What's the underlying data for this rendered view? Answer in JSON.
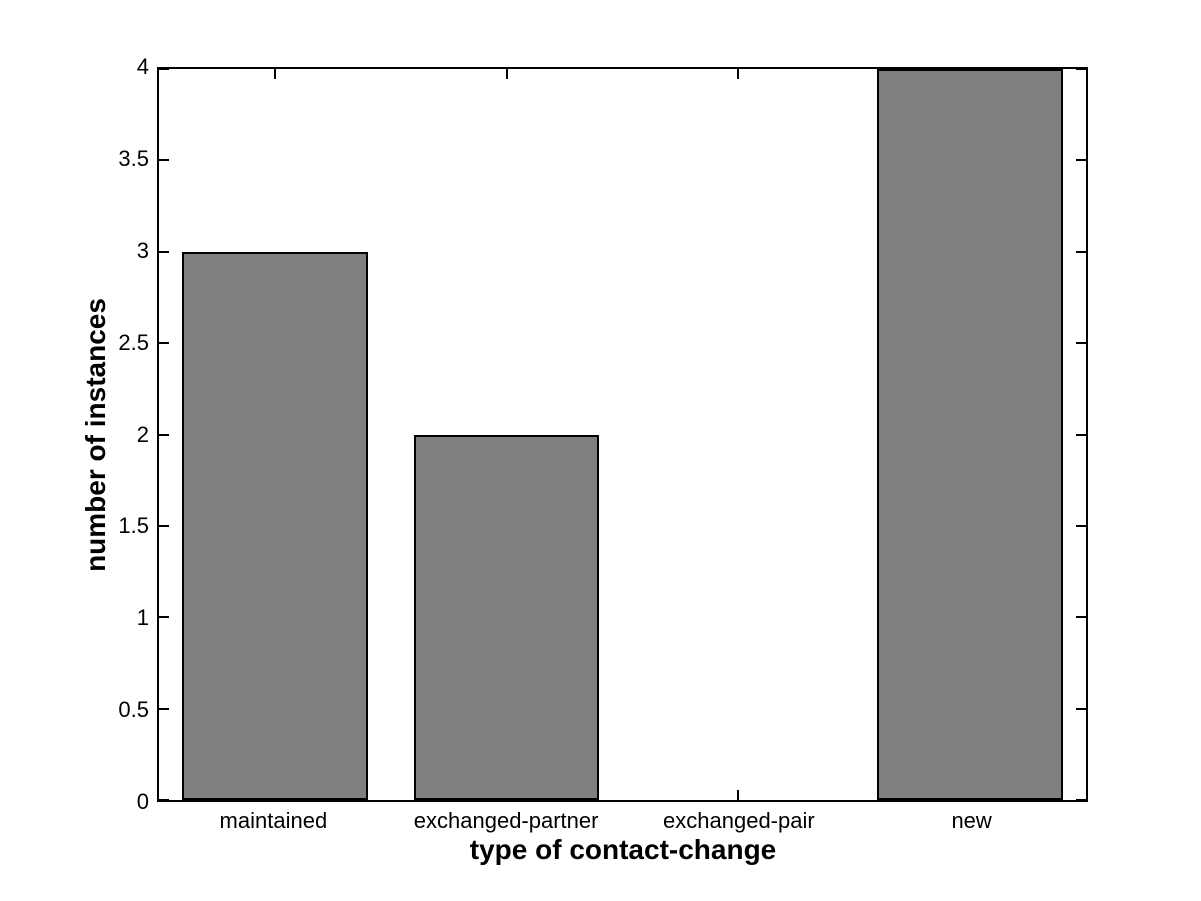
{
  "chart_data": {
    "type": "bar",
    "title": "",
    "categories": [
      "maintained",
      "exchanged-partner",
      "exchanged-pair",
      "new"
    ],
    "values": [
      3,
      2,
      0,
      4
    ],
    "xlabel": "type of contact-change",
    "ylabel": "number of instances",
    "ylim": [
      0,
      4
    ],
    "yticks": [
      "0",
      "0.5",
      "1",
      "1.5",
      "2",
      "2.5",
      "3",
      "3.5",
      "4"
    ],
    "bar_width_fraction": 0.8,
    "grid": false,
    "legend": null,
    "tick_direction": "in",
    "colors": {
      "bar_fill": "#808080",
      "bar_edge": "#000000",
      "axis": "#000000",
      "background": "#ffffff",
      "text": "#000000"
    }
  }
}
